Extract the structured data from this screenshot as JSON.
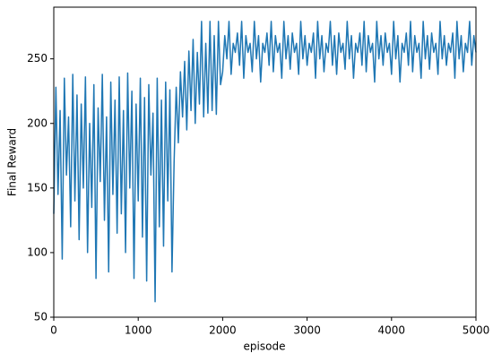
{
  "chart_data": {
    "type": "line",
    "xlabel": "episode",
    "ylabel": "Final Reward",
    "xlim": [
      0,
      5000
    ],
    "xticks": [
      0,
      1000,
      2000,
      3000,
      4000,
      5000
    ],
    "ylim": [
      50,
      290
    ],
    "yticks": [
      50,
      100,
      150,
      200,
      250
    ],
    "grid": false,
    "series": [
      {
        "color": "#1f77b4",
        "x": [
          0,
          25,
          50,
          75,
          100,
          125,
          150,
          175,
          200,
          225,
          250,
          275,
          300,
          325,
          350,
          375,
          400,
          425,
          450,
          475,
          500,
          525,
          550,
          575,
          600,
          625,
          650,
          675,
          700,
          725,
          750,
          775,
          800,
          825,
          850,
          875,
          900,
          925,
          950,
          975,
          1000,
          1025,
          1050,
          1075,
          1100,
          1125,
          1150,
          1175,
          1200,
          1225,
          1250,
          1275,
          1300,
          1325,
          1350,
          1375,
          1400,
          1425,
          1450,
          1475,
          1500,
          1525,
          1550,
          1575,
          1600,
          1625,
          1650,
          1675,
          1700,
          1725,
          1750,
          1775,
          1800,
          1825,
          1850,
          1875,
          1900,
          1925,
          1950,
          1975,
          2000,
          2025,
          2050,
          2075,
          2100,
          2125,
          2150,
          2175,
          2200,
          2225,
          2250,
          2275,
          2300,
          2325,
          2350,
          2375,
          2400,
          2425,
          2450,
          2475,
          2500,
          2525,
          2550,
          2575,
          2600,
          2625,
          2650,
          2675,
          2700,
          2725,
          2750,
          2775,
          2800,
          2825,
          2850,
          2875,
          2900,
          2925,
          2950,
          2975,
          3000,
          3025,
          3050,
          3075,
          3100,
          3125,
          3150,
          3175,
          3200,
          3225,
          3250,
          3275,
          3300,
          3325,
          3350,
          3375,
          3400,
          3425,
          3450,
          3475,
          3500,
          3525,
          3550,
          3575,
          3600,
          3625,
          3650,
          3675,
          3700,
          3725,
          3750,
          3775,
          3800,
          3825,
          3850,
          3875,
          3900,
          3925,
          3950,
          3975,
          4000,
          4025,
          4050,
          4075,
          4100,
          4125,
          4150,
          4175,
          4200,
          4225,
          4250,
          4275,
          4300,
          4325,
          4350,
          4375,
          4400,
          4425,
          4450,
          4475,
          4500,
          4525,
          4550,
          4575,
          4600,
          4625,
          4650,
          4675,
          4700,
          4725,
          4750,
          4775,
          4800,
          4825,
          4850,
          4875,
          4900,
          4925,
          4950,
          4975,
          5000
        ],
        "values": [
          130,
          228,
          145,
          210,
          95,
          235,
          160,
          205,
          120,
          238,
          140,
          222,
          110,
          215,
          150,
          236,
          100,
          200,
          135,
          230,
          80,
          212,
          155,
          238,
          125,
          205,
          85,
          232,
          145,
          218,
          115,
          236,
          130,
          210,
          100,
          239,
          150,
          225,
          80,
          215,
          140,
          235,
          112,
          220,
          78,
          230,
          160,
          208,
          62,
          235,
          120,
          218,
          105,
          232,
          140,
          226,
          85,
          170,
          228,
          185,
          240,
          205,
          248,
          195,
          256,
          210,
          265,
          200,
          255,
          215,
          279,
          205,
          262,
          208,
          279,
          210,
          268,
          207,
          279,
          230,
          240,
          268,
          250,
          279,
          238,
          262,
          255,
          270,
          245,
          279,
          235,
          268,
          255,
          262,
          240,
          279,
          250,
          268,
          232,
          262,
          255,
          270,
          245,
          279,
          240,
          268,
          255,
          262,
          235,
          279,
          250,
          268,
          242,
          270,
          255,
          262,
          238,
          279,
          250,
          268,
          245,
          262,
          255,
          270,
          235,
          279,
          250,
          268,
          240,
          262,
          255,
          279,
          245,
          268,
          238,
          270,
          255,
          262,
          242,
          279,
          250,
          268,
          235,
          262,
          255,
          270,
          245,
          279,
          240,
          268,
          255,
          262,
          232,
          279,
          250,
          268,
          245,
          270,
          255,
          262,
          238,
          279,
          250,
          268,
          232,
          262,
          255,
          270,
          245,
          279,
          240,
          268,
          255,
          262,
          235,
          279,
          250,
          268,
          242,
          270,
          255,
          262,
          238,
          279,
          250,
          268,
          245,
          262,
          255,
          270,
          235,
          279,
          250,
          268,
          240,
          262,
          255,
          279,
          245,
          268,
          255
        ]
      }
    ]
  }
}
